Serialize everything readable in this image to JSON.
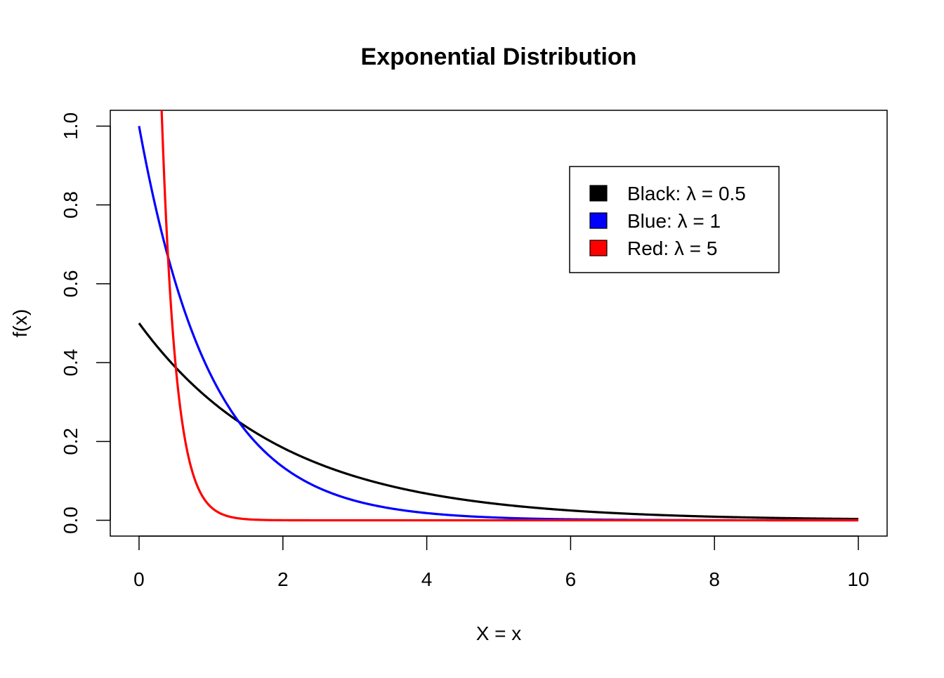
{
  "chart_data": {
    "type": "line",
    "title": "Exponential Distribution",
    "xlabel": "X = x",
    "ylabel": "f(x)",
    "xlim": [
      -0.4,
      10.4
    ],
    "ylim": [
      -0.04,
      1.04
    ],
    "x_ticks": [
      "0",
      "2",
      "4",
      "6",
      "8",
      "10"
    ],
    "y_ticks": [
      "0.0",
      "0.2",
      "0.4",
      "0.6",
      "0.8",
      "1.0"
    ],
    "grid": false,
    "legend_position": "top-right",
    "series": [
      {
        "name": "Black:  λ = 0.5",
        "rate": 0.5,
        "color": "#000000"
      },
      {
        "name": "Blue:  λ = 1",
        "rate": 1,
        "color": "#0000ff"
      },
      {
        "name": "Red:  λ = 5",
        "rate": 5,
        "color": "#ff0000"
      }
    ],
    "x_range": [
      0,
      10
    ]
  }
}
